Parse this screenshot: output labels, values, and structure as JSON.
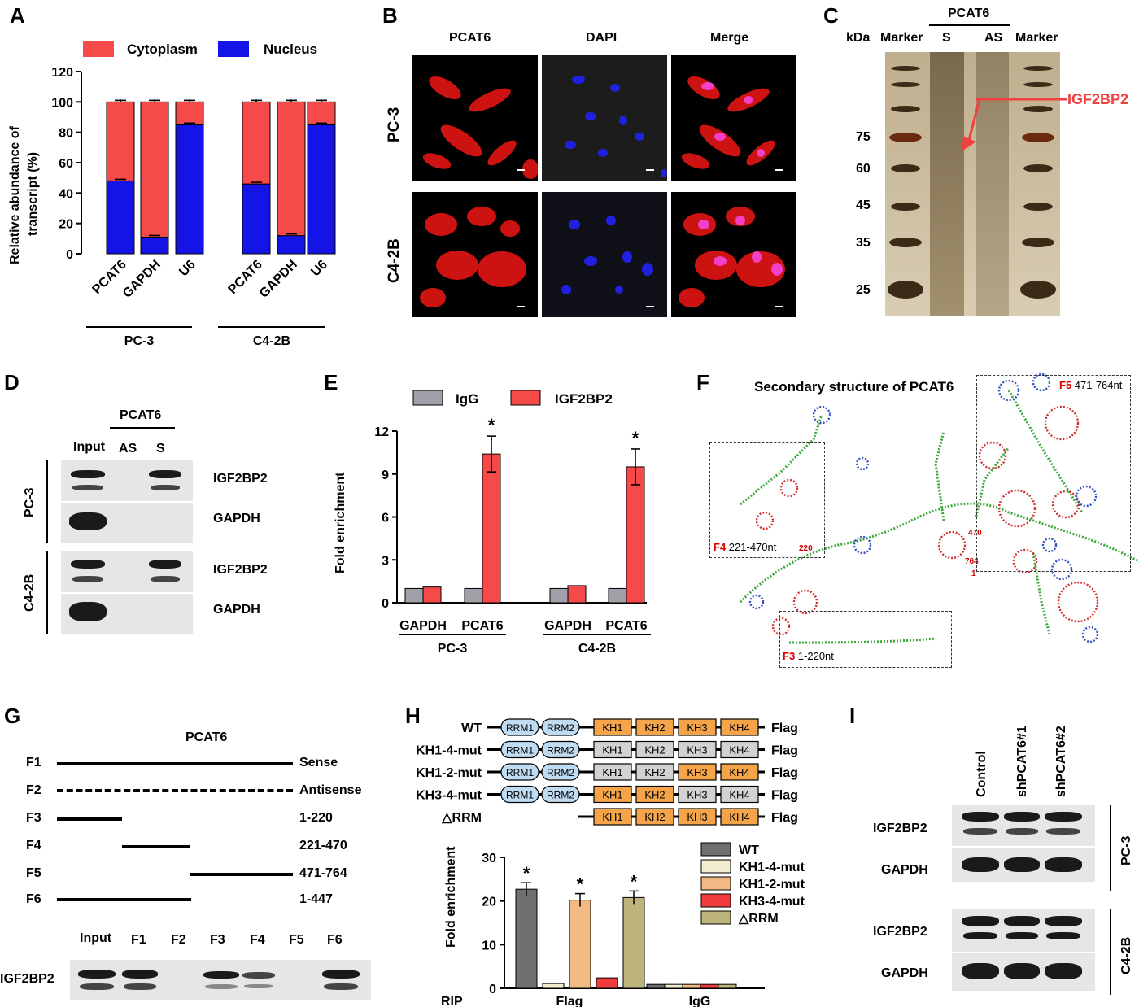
{
  "panel_labels": [
    "A",
    "B",
    "C",
    "D",
    "E",
    "F",
    "G",
    "H",
    "I"
  ],
  "panelA": {
    "legend": [
      "Cytoplasm",
      "Nucleus"
    ],
    "ylabel_line1": "Relative abundance of",
    "ylabel_line2": "transcript (%)",
    "yticks": [
      "0",
      "20",
      "40",
      "60",
      "80",
      "100",
      "120"
    ],
    "groups": [
      "PC-3",
      "C4-2B"
    ],
    "categories": [
      "PCAT6",
      "GAPDH",
      "U6",
      "PCAT6",
      "GAPDH",
      "U6"
    ]
  },
  "panelB": {
    "columns": [
      "PCAT6",
      "DAPI",
      "Merge"
    ],
    "rows": [
      "PC-3",
      "C4-2B"
    ]
  },
  "panelC": {
    "kda": "kDa",
    "header_top": "PCAT6",
    "headers": [
      "Marker",
      "S",
      "AS",
      "Marker"
    ],
    "markers": [
      "75",
      "60",
      "45",
      "35",
      "25"
    ],
    "annotation": "IGF2BP2"
  },
  "panelD": {
    "header_top": "PCAT6",
    "lanes": [
      "Input",
      "AS",
      "S"
    ],
    "rows": [
      "PC-3",
      "C4-2B"
    ],
    "proteins": [
      "IGF2BP2",
      "GAPDH",
      "IGF2BP2",
      "GAPDH"
    ]
  },
  "panelE": {
    "legend": [
      "IgG",
      "IGF2BP2"
    ],
    "ylabel": "Fold enrichment",
    "yticks": [
      "0",
      "3",
      "6",
      "9",
      "12"
    ],
    "categories": [
      "GAPDH",
      "PCAT6",
      "GAPDH",
      "PCAT6"
    ],
    "groups": [
      "PC-3",
      "C4-2B"
    ],
    "star": "*"
  },
  "panelF": {
    "title": "Secondary structure of PCAT6",
    "boxes": [
      {
        "id": "F5",
        "range": "471-764nt"
      },
      {
        "id": "F4",
        "range": "221-470nt"
      },
      {
        "id": "F3",
        "range": "1-220nt"
      }
    ],
    "marks": [
      "220",
      "470",
      "764",
      "1"
    ]
  },
  "panelG": {
    "title": "PCAT6",
    "rows": [
      {
        "id": "F1",
        "label": "Sense"
      },
      {
        "id": "F2",
        "label": "Antisense"
      },
      {
        "id": "F3",
        "label": "1-220"
      },
      {
        "id": "F4",
        "label": "221-470"
      },
      {
        "id": "F5",
        "label": "471-764"
      },
      {
        "id": "F6",
        "label": "1-447"
      }
    ],
    "lanes": [
      "Input",
      "F1",
      "F2",
      "F3",
      "F4",
      "F5",
      "F6"
    ],
    "protein": "IGF2BP2"
  },
  "panelH": {
    "constructs": [
      "WT",
      "KH1-4-mut",
      "KH1-2-mut",
      "KH3-4-mut",
      "△RRM"
    ],
    "domains": [
      "RRM1",
      "RRM2",
      "KH1",
      "KH2",
      "KH3",
      "KH4"
    ],
    "tag": "Flag",
    "ylabel": "Fold enrichment",
    "yticks": [
      "0",
      "10",
      "20",
      "30"
    ],
    "xlabels": [
      "RIP",
      "Flag",
      "IgG"
    ],
    "legend": [
      "WT",
      "KH1-4-mut",
      "KH1-2-mut",
      "KH3-4-mut",
      "△RRM"
    ],
    "star": "*"
  },
  "panelI": {
    "lanes": [
      "Control",
      "shPCAT6#1",
      "shPCAT6#2"
    ],
    "proteins": [
      "IGF2BP2",
      "GAPDH",
      "IGF2BP2",
      "GAPDH"
    ],
    "rows": [
      "PC-3",
      "C4-2B"
    ]
  },
  "colors": {
    "cytoplasm": "#f44a4a",
    "nucleus": "#1414e6",
    "igg": "#a0a0a8",
    "igf2bp2": "#f44a4a",
    "wt": "#707070",
    "kh14": "#f2ecce",
    "kh12": "#f3b985",
    "kh34": "#f03c3c",
    "drrm": "#bcb47a",
    "rrm": "#bfdcf2",
    "kh_on": "#f6a44a",
    "kh_off": "#d2d2d2"
  },
  "chart_data": [
    {
      "type": "bar",
      "panel": "A",
      "categories": [
        "PCAT6",
        "GAPDH",
        "U6",
        "PCAT6",
        "GAPDH",
        "U6"
      ],
      "groups": [
        "PC-3",
        "PC-3",
        "PC-3",
        "C4-2B",
        "C4-2B",
        "C4-2B"
      ],
      "series": [
        {
          "name": "Nucleus",
          "values": [
            48,
            11,
            85,
            46,
            12,
            85
          ]
        },
        {
          "name": "Cytoplasm",
          "values": [
            52,
            89,
            15,
            54,
            88,
            15
          ]
        }
      ],
      "stacked": true,
      "ylabel": "Relative abundance of transcript (%)",
      "ylim": [
        0,
        120
      ]
    },
    {
      "type": "bar",
      "panel": "E",
      "categories": [
        "GAPDH",
        "PCAT6",
        "GAPDH",
        "PCAT6"
      ],
      "groups": [
        "PC-3",
        "PC-3",
        "C4-2B",
        "C4-2B"
      ],
      "series": [
        {
          "name": "IgG",
          "values": [
            1.0,
            1.0,
            1.0,
            1.0
          ]
        },
        {
          "name": "IGF2BP2",
          "values": [
            1.1,
            10.4,
            1.2,
            9.5
          ]
        }
      ],
      "ylabel": "Fold enrichment",
      "ylim": [
        0,
        12
      ]
    },
    {
      "type": "bar",
      "panel": "H",
      "categories": [
        "Flag",
        "IgG"
      ],
      "series": [
        {
          "name": "WT",
          "values": [
            22.7,
            0.9
          ]
        },
        {
          "name": "KH1-4-mut",
          "values": [
            1.1,
            0.9
          ]
        },
        {
          "name": "KH1-2-mut",
          "values": [
            20.2,
            0.9
          ]
        },
        {
          "name": "KH3-4-mut",
          "values": [
            2.4,
            0.9
          ]
        },
        {
          "name": "△RRM",
          "values": [
            20.8,
            0.9
          ]
        }
      ],
      "ylabel": "Fold enrichment",
      "ylim": [
        0,
        30
      ]
    }
  ]
}
